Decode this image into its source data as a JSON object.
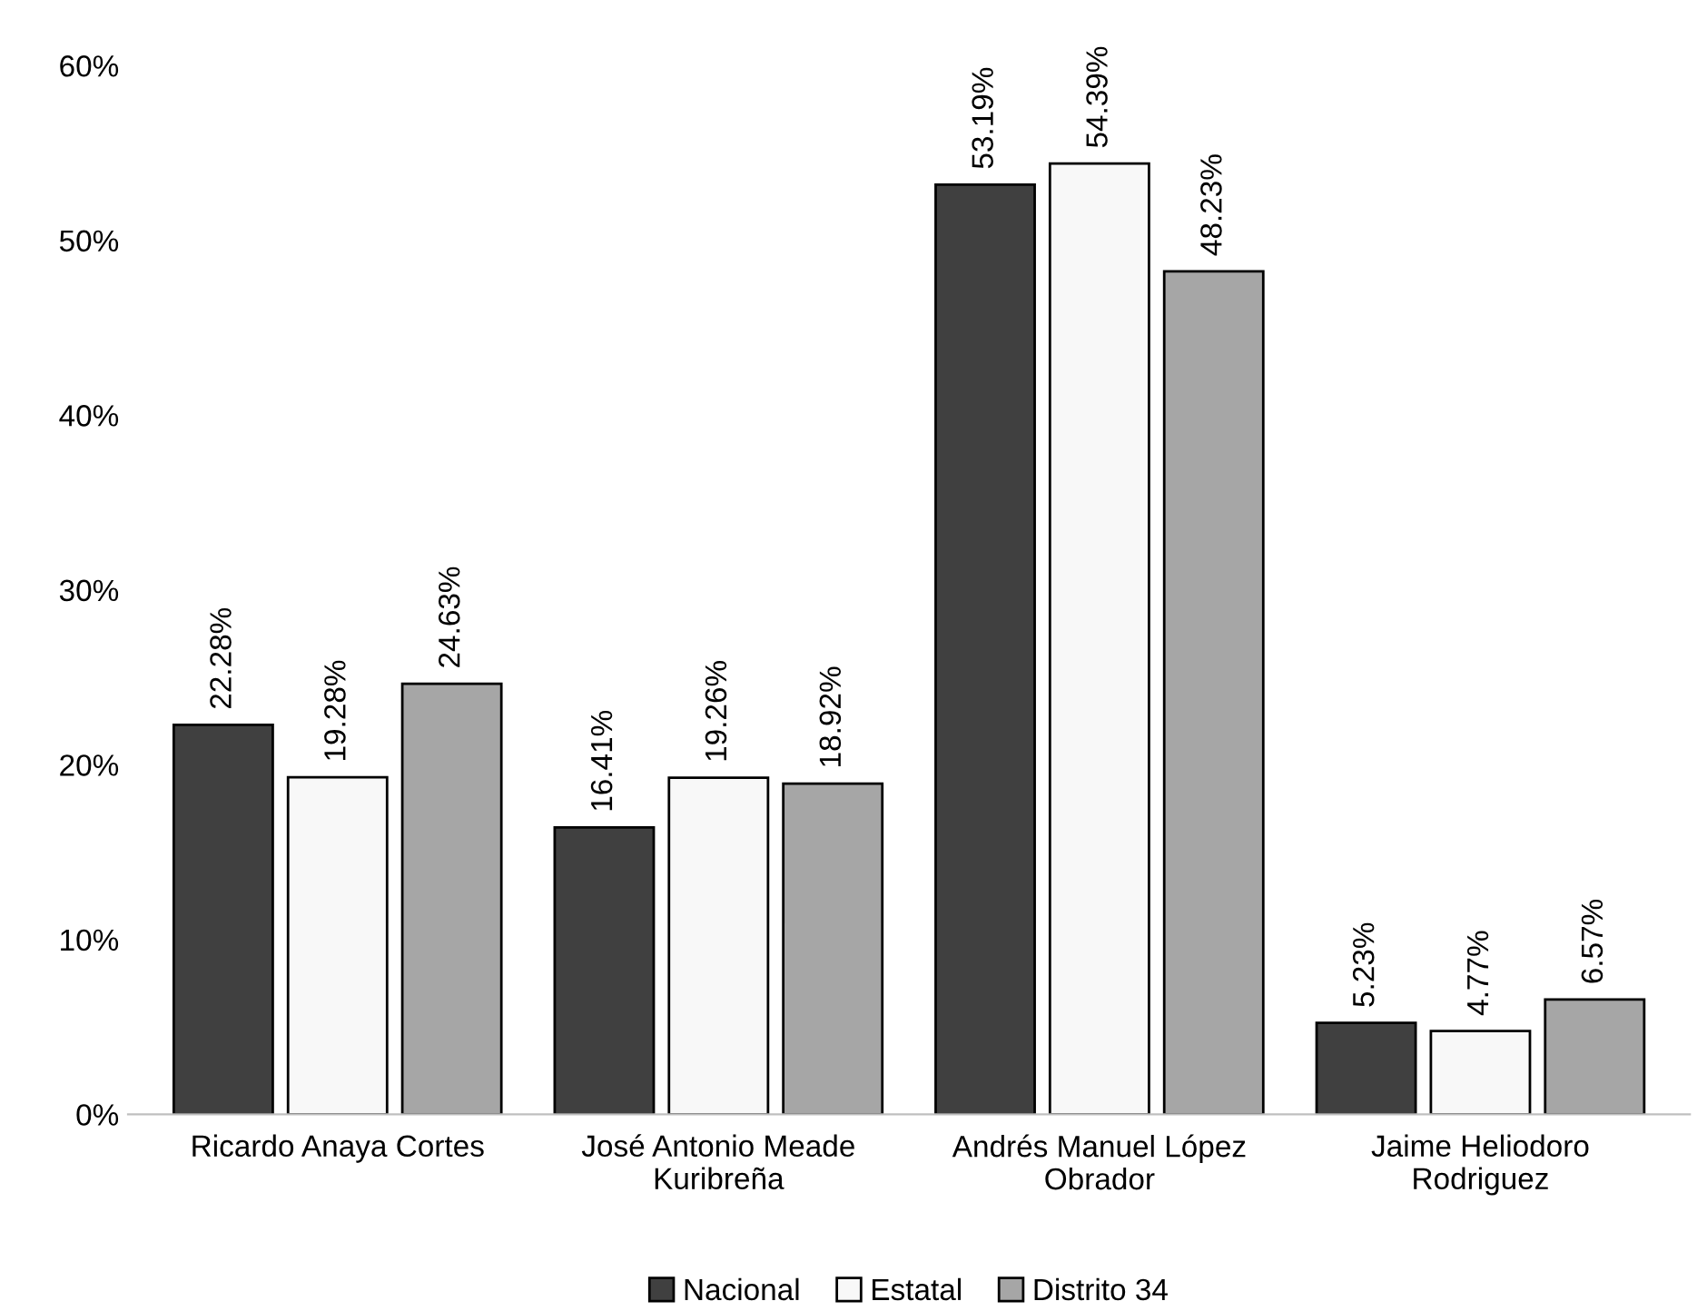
{
  "chart_data": {
    "type": "bar",
    "categories": [
      "Ricardo Anaya Cortes",
      "José Antonio Meade\nKuribreña",
      "Andrés Manuel López\nObrador",
      "Jaime Heliodoro\nRodriguez"
    ],
    "series": [
      {
        "name": "Nacional",
        "color": "#404040",
        "values": [
          22.28,
          16.41,
          53.19,
          5.23
        ],
        "value_labels": [
          "22.28%",
          "16.41%",
          "53.19%",
          "5.23%"
        ]
      },
      {
        "name": "Estatal",
        "color": "#f8f8f8",
        "values": [
          19.28,
          19.26,
          54.39,
          4.77
        ],
        "value_labels": [
          "19.28%",
          "19.26%",
          "54.39%",
          "4.77%"
        ]
      },
      {
        "name": "Distrito 34",
        "color": "#a6a6a6",
        "values": [
          24.63,
          18.92,
          48.23,
          6.57
        ],
        "value_labels": [
          "24.63%",
          "18.92%",
          "48.23%",
          "6.57%"
        ]
      }
    ],
    "ylim": [
      0,
      60
    ],
    "yticks": [
      {
        "value": 0,
        "label": "0%"
      },
      {
        "value": 10,
        "label": "10%"
      },
      {
        "value": 20,
        "label": "20%"
      },
      {
        "value": 30,
        "label": "30%"
      },
      {
        "value": 40,
        "label": "40%"
      },
      {
        "value": 50,
        "label": "50%"
      },
      {
        "value": 60,
        "label": "60%"
      }
    ],
    "grid": false,
    "legend": "bottom"
  }
}
